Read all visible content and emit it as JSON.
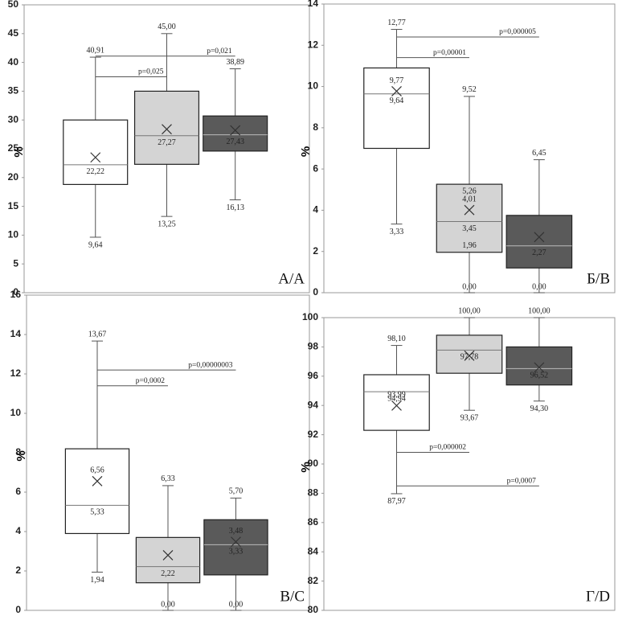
{
  "chart_data": [
    {
      "type": "box",
      "label": "А/A",
      "ylabel": "%",
      "ylim": [
        0,
        50
      ],
      "yticks": [
        0,
        5,
        10,
        15,
        20,
        25,
        30,
        35,
        40,
        45,
        50
      ],
      "boxes": [
        {
          "color": "#ffffff",
          "min": 9.64,
          "q1": 18.8,
          "median": 22.22,
          "q3": 30,
          "max": 40.91,
          "mean": 23.5,
          "value_labels": {
            "min": "9,64",
            "median": "22,22",
            "max": "40,91"
          }
        },
        {
          "color": "#d4d4d4",
          "min": 13.25,
          "q1": 22.3,
          "median": 27.27,
          "q3": 35,
          "max": 45.0,
          "mean": 28.4,
          "value_labels": {
            "min": "13,25",
            "median": "27,27",
            "max": "45,00"
          }
        },
        {
          "color": "#5a5a5a",
          "min": 16.13,
          "q1": 24.6,
          "median": 27.43,
          "q3": 30.7,
          "max": 38.89,
          "mean": 28.2,
          "value_labels": {
            "min": "16,13",
            "median": "27,43",
            "max": "38,89"
          }
        }
      ],
      "annotations": [
        {
          "text": "p=0,025",
          "y": 37.5,
          "from": 0,
          "to": 1
        },
        {
          "text": "p=0,021",
          "y": 41.1,
          "from": 0,
          "to": 2
        }
      ]
    },
    {
      "type": "box",
      "label": "Б/B",
      "ylabel": "%",
      "ylim": [
        0,
        14
      ],
      "yticks": [
        0,
        2,
        4,
        6,
        8,
        10,
        12,
        14
      ],
      "boxes": [
        {
          "color": "#ffffff",
          "min": 3.33,
          "q1": 7.0,
          "median": 9.64,
          "q3": 10.9,
          "max": 12.77,
          "mean": 9.77,
          "value_labels": {
            "min": "3,33",
            "median": "9,64",
            "mean": "9,77",
            "max": "12,77"
          }
        },
        {
          "color": "#d4d4d4",
          "min": 0.0,
          "q1": 1.96,
          "median": 3.45,
          "q3": 5.26,
          "max": 9.52,
          "mean": 4.01,
          "value_labels": {
            "min": "0,00",
            "q1": "1,96",
            "median": "3,45",
            "mean": "4,01",
            "q3": "5,26",
            "max": "9,52"
          }
        },
        {
          "color": "#5a5a5a",
          "min": 0.0,
          "q1": 1.2,
          "median": 2.27,
          "q3": 3.75,
          "max": 6.45,
          "mean": 2.7,
          "value_labels": {
            "min": "0,00",
            "median": "2,27",
            "max": "6,45"
          }
        }
      ],
      "annotations": [
        {
          "text": "p=0,00001",
          "y": 11.4,
          "from": 0,
          "to": 1
        },
        {
          "text": "p=0,000005",
          "y": 12.4,
          "from": 0,
          "to": 2
        }
      ]
    },
    {
      "type": "box",
      "label": "В/C",
      "ylabel": "%",
      "ylim": [
        0,
        16
      ],
      "yticks": [
        0,
        2,
        4,
        6,
        8,
        10,
        12,
        14,
        16
      ],
      "boxes": [
        {
          "color": "#ffffff",
          "min": 1.94,
          "q1": 3.9,
          "median": 5.33,
          "q3": 8.2,
          "max": 13.67,
          "mean": 6.56,
          "value_labels": {
            "min": "1,94",
            "median": "5,33",
            "mean": "6,56",
            "max": "13,67"
          }
        },
        {
          "color": "#d4d4d4",
          "min": 0.0,
          "q1": 1.4,
          "median": 2.22,
          "q3": 3.7,
          "max": 6.33,
          "mean": 2.8,
          "value_labels": {
            "min": "0,00",
            "median": "2,22",
            "max": "6,33"
          }
        },
        {
          "color": "#5a5a5a",
          "min": 0.0,
          "q1": 1.8,
          "median": 3.33,
          "q3": 4.6,
          "max": 5.7,
          "mean": 3.48,
          "value_labels": {
            "min": "0,00",
            "median": "3,33",
            "mean": "3,48",
            "max": "5,70"
          }
        }
      ],
      "annotations": [
        {
          "text": "p=0,0002",
          "y": 11.4,
          "from": 0,
          "to": 1
        },
        {
          "text": "p=0,00000003",
          "y": 12.2,
          "from": 0,
          "to": 2
        }
      ]
    },
    {
      "type": "box",
      "label": "Г/D",
      "ylabel": "%",
      "ylim": [
        80,
        100
      ],
      "yticks": [
        80,
        82,
        84,
        86,
        88,
        90,
        92,
        94,
        96,
        98,
        100
      ],
      "boxes": [
        {
          "color": "#ffffff",
          "min": 87.97,
          "q1": 92.3,
          "median": 94.94,
          "q3": 96.1,
          "max": 98.1,
          "mean": 93.99,
          "value_labels": {
            "min": "87,97",
            "median": "94,94",
            "mean": "93,99",
            "max": "98,10"
          }
        },
        {
          "color": "#d4d4d4",
          "min": 93.67,
          "q1": 96.2,
          "median": 97.78,
          "q3": 98.8,
          "max": 100.0,
          "mean": 97.4,
          "value_labels": {
            "min": "93,67",
            "median": "97,78",
            "max": "100,00"
          }
        },
        {
          "color": "#5a5a5a",
          "min": 94.3,
          "q1": 95.4,
          "median": 96.52,
          "q3": 98.0,
          "max": 100.0,
          "mean": 96.6,
          "value_labels": {
            "min": "94,30",
            "median": "96,52",
            "max": "100,00"
          }
        }
      ],
      "annotations": [
        {
          "text": "p=0,000002",
          "y": 90.8,
          "from": 0,
          "to": 1
        },
        {
          "text": "p=0,0007",
          "y": 88.5,
          "from": 0,
          "to": 2
        }
      ]
    }
  ]
}
